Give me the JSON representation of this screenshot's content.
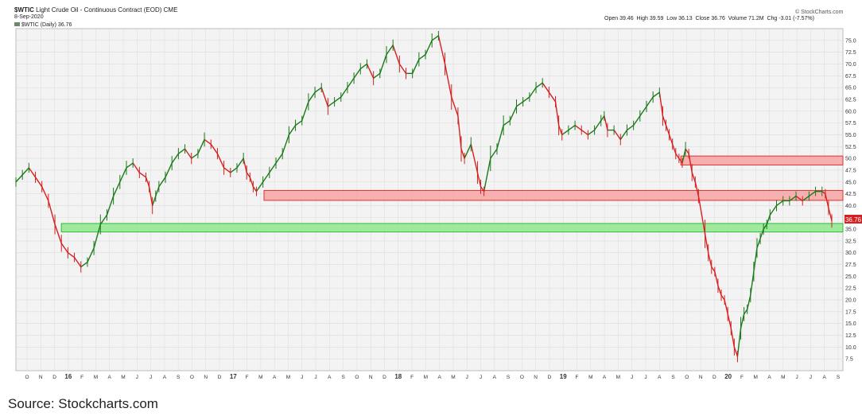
{
  "header": {
    "symbol": "$WTIC",
    "title": "Light Crude Oil - Continuous Contract (EOD)",
    "exchange": "CME",
    "date": "8-Sep-2020",
    "legend": "$WTIC (Daily) 36.76",
    "brand": "© StockCharts.com",
    "ohlc": {
      "open_label": "Open",
      "open": "39.46",
      "high_label": "High",
      "high": "39.59",
      "low_label": "Low",
      "low": "36.13",
      "close_label": "Close",
      "close": "36.76",
      "volume_label": "Volume",
      "volume": "71.2M",
      "chg_label": "Chg",
      "chg": "-3.01 (-7.57%)"
    }
  },
  "price_label": "36.76",
  "caption": "Source: Stockcharts.com",
  "colors": {
    "up": "#1a7a1a",
    "down": "#d62020",
    "grid": "#dcdcdc",
    "plot_bg": "#f3f3f3",
    "resistance_fill": "#f6a3a3",
    "resistance_stroke": "#e03030",
    "support_fill": "#8fe88f",
    "support_stroke": "#33bb33"
  },
  "chart_data": {
    "type": "line",
    "title": "$WTIC Light Crude Oil - Continuous Contract (EOD)",
    "ylim": [
      5,
      77.5
    ],
    "y_ticks": [
      "7.5",
      "10.0",
      "12.5",
      "15.0",
      "17.5",
      "20.0",
      "22.5",
      "25.0",
      "27.5",
      "30.0",
      "32.5",
      "35.0",
      "37.5",
      "40.0",
      "42.5",
      "45.0",
      "47.5",
      "50.0",
      "52.5",
      "55.0",
      "57.5",
      "60.0",
      "62.5",
      "65.0",
      "67.5",
      "70.0",
      "72.5",
      "75.0"
    ],
    "x_ticks": [
      "O",
      "N",
      "D",
      "16",
      "F",
      "M",
      "A",
      "M",
      "J",
      "J",
      "A",
      "S",
      "O",
      "N",
      "D",
      "17",
      "F",
      "M",
      "A",
      "M",
      "J",
      "J",
      "A",
      "S",
      "O",
      "N",
      "D",
      "18",
      "F",
      "M",
      "A",
      "M",
      "J",
      "J",
      "A",
      "S",
      "O",
      "N",
      "D",
      "19",
      "F",
      "M",
      "A",
      "M",
      "J",
      "J",
      "A",
      "S",
      "O",
      "N",
      "D",
      "20",
      "F",
      "M",
      "A",
      "M",
      "J",
      "J",
      "A",
      "S"
    ],
    "series": [
      {
        "values": [
          [
            0,
            45
          ],
          [
            2,
            46.5
          ],
          [
            4,
            48
          ],
          [
            6,
            46
          ],
          [
            8,
            44
          ],
          [
            10,
            41
          ],
          [
            12,
            36
          ],
          [
            14,
            32
          ],
          [
            16,
            30
          ],
          [
            18,
            29
          ],
          [
            20,
            27
          ],
          [
            22,
            28
          ],
          [
            24,
            31
          ],
          [
            26,
            36
          ],
          [
            28,
            38
          ],
          [
            30,
            42
          ],
          [
            32,
            45
          ],
          [
            34,
            48
          ],
          [
            36,
            49
          ],
          [
            38,
            47
          ],
          [
            40,
            46
          ],
          [
            41,
            44
          ],
          [
            42,
            40
          ],
          [
            43,
            42
          ],
          [
            44,
            44
          ],
          [
            46,
            46
          ],
          [
            48,
            49
          ],
          [
            50,
            51
          ],
          [
            52,
            52
          ],
          [
            54,
            50
          ],
          [
            56,
            51
          ],
          [
            58,
            54
          ],
          [
            60,
            53
          ],
          [
            62,
            51
          ],
          [
            64,
            48
          ],
          [
            66,
            47
          ],
          [
            68,
            48
          ],
          [
            70,
            50
          ],
          [
            71,
            47
          ],
          [
            72,
            46
          ],
          [
            73,
            44
          ],
          [
            74,
            43
          ],
          [
            76,
            45
          ],
          [
            78,
            47
          ],
          [
            80,
            49
          ],
          [
            82,
            51
          ],
          [
            84,
            55
          ],
          [
            86,
            57
          ],
          [
            88,
            58
          ],
          [
            90,
            62
          ],
          [
            92,
            64
          ],
          [
            94,
            65
          ],
          [
            96,
            61
          ],
          [
            98,
            62
          ],
          [
            100,
            63
          ],
          [
            102,
            65
          ],
          [
            104,
            67
          ],
          [
            106,
            69
          ],
          [
            108,
            70
          ],
          [
            110,
            67
          ],
          [
            112,
            68
          ],
          [
            114,
            72
          ],
          [
            116,
            74
          ],
          [
            118,
            70
          ],
          [
            120,
            68
          ],
          [
            122,
            68
          ],
          [
            124,
            71
          ],
          [
            126,
            72
          ],
          [
            128,
            75
          ],
          [
            130,
            76
          ],
          [
            132,
            70
          ],
          [
            134,
            63
          ],
          [
            136,
            59
          ],
          [
            137,
            52
          ],
          [
            138,
            50
          ],
          [
            140,
            53
          ],
          [
            142,
            47
          ],
          [
            143,
            44
          ],
          [
            144,
            43
          ],
          [
            146,
            50
          ],
          [
            148,
            52
          ],
          [
            150,
            57
          ],
          [
            152,
            58
          ],
          [
            154,
            61
          ],
          [
            156,
            62
          ],
          [
            158,
            63
          ],
          [
            160,
            65
          ],
          [
            162,
            66
          ],
          [
            164,
            64
          ],
          [
            166,
            62
          ],
          [
            167,
            57
          ],
          [
            168,
            55
          ],
          [
            170,
            56
          ],
          [
            172,
            57
          ],
          [
            174,
            56
          ],
          [
            176,
            55
          ],
          [
            178,
            56
          ],
          [
            180,
            58
          ],
          [
            181,
            59
          ],
          [
            182,
            56
          ],
          [
            184,
            56
          ],
          [
            186,
            54
          ],
          [
            188,
            56
          ],
          [
            190,
            57
          ],
          [
            192,
            59
          ],
          [
            194,
            61
          ],
          [
            196,
            63
          ],
          [
            198,
            64
          ],
          [
            199,
            59
          ],
          [
            200,
            57
          ],
          [
            201,
            55
          ],
          [
            202,
            53
          ],
          [
            203,
            51
          ],
          [
            204,
            50
          ],
          [
            205,
            49
          ],
          [
            206,
            52
          ],
          [
            207,
            51
          ],
          [
            208,
            47
          ],
          [
            209,
            45
          ],
          [
            210,
            42
          ],
          [
            212,
            34
          ],
          [
            213,
            30
          ],
          [
            214,
            27
          ],
          [
            215,
            26
          ],
          [
            216,
            23
          ],
          [
            217,
            21
          ],
          [
            218,
            20
          ],
          [
            219,
            17
          ],
          [
            220,
            14
          ],
          [
            221,
            10
          ],
          [
            222,
            8
          ],
          [
            223,
            14
          ],
          [
            224,
            17
          ],
          [
            225,
            18
          ],
          [
            226,
            21
          ],
          [
            227,
            26
          ],
          [
            228,
            31
          ],
          [
            229,
            33
          ],
          [
            230,
            35
          ],
          [
            231,
            36
          ],
          [
            232,
            38
          ],
          [
            234,
            40
          ],
          [
            236,
            41
          ],
          [
            238,
            41
          ],
          [
            240,
            42
          ],
          [
            242,
            41
          ],
          [
            244,
            42
          ],
          [
            246,
            43
          ],
          [
            248,
            43
          ],
          [
            249,
            42.5
          ],
          [
            250,
            39.5
          ],
          [
            251,
            36.76
          ]
        ]
      }
    ],
    "bands": [
      {
        "kind": "resistance",
        "from_x": 0.3,
        "to_x": 1.0,
        "from": 41.1,
        "to": 43.2
      },
      {
        "kind": "resistance",
        "from_x": 0.804,
        "to_x": 1.0,
        "from": 48.6,
        "to": 50.5
      },
      {
        "kind": "support",
        "from_x": 0.055,
        "to_x": 1.0,
        "from": 34.4,
        "to": 36.2
      }
    ]
  }
}
